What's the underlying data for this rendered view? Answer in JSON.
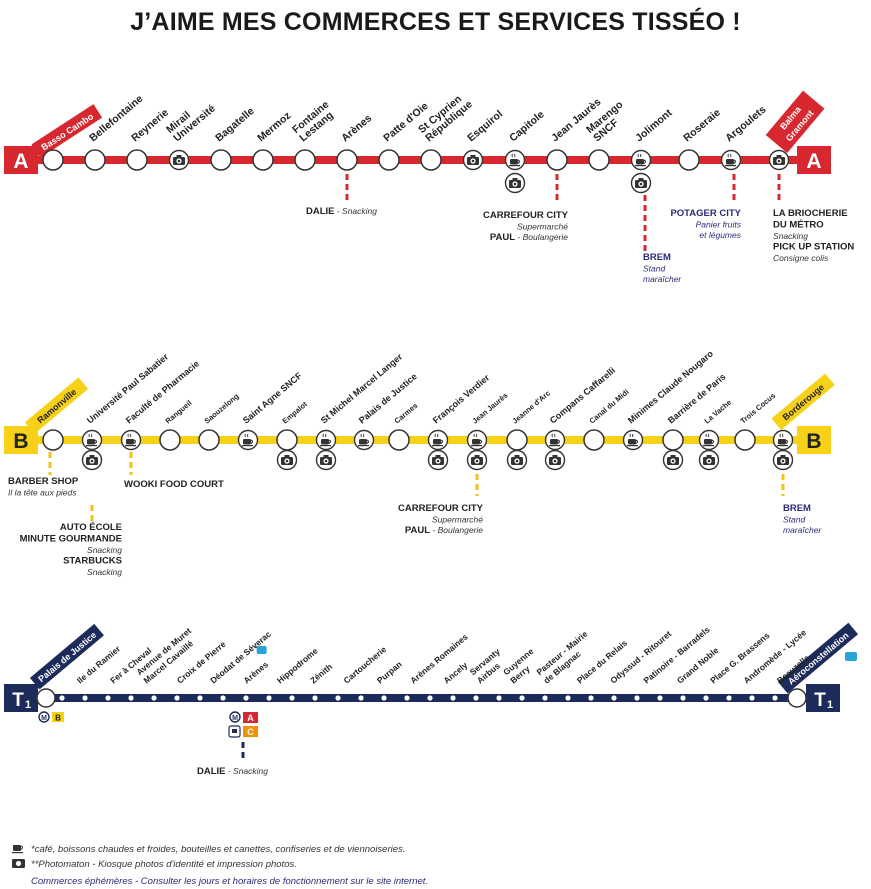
{
  "title": "J’AIME MES COMMERCES ET SERVICES TISSÉO !",
  "colors": {
    "lineA": "#d7282f",
    "lineB": "#f7d117",
    "lineT1": "#1c2b5a",
    "dash_red": "#d7282f",
    "dash_yellow": "#f2c11a",
    "dash_navy": "#1c2b5a",
    "shop_blue": "#2b2a7a",
    "metro_b_badge": "#f7d117",
    "metro_a_badge": "#d7282f",
    "metro_c_badge": "#f39200",
    "airport_badge": "#2aa3d8"
  },
  "lines": {
    "A": {
      "letter": "A",
      "terminus_start": [
        "Basso Cambo"
      ],
      "terminus_end": [
        "Balma",
        "Gramont"
      ],
      "stations": [
        {
          "name": [
            "Bellefontaine"
          ],
          "icons": []
        },
        {
          "name": [
            "Reynerie"
          ],
          "icons": []
        },
        {
          "name": [
            "Mirail",
            "Université"
          ],
          "icons": [
            "photo"
          ]
        },
        {
          "name": [
            "Bagatelle"
          ],
          "icons": []
        },
        {
          "name": [
            "Mermoz"
          ],
          "icons": []
        },
        {
          "name": [
            "Fontaine",
            "Lestang"
          ],
          "icons": []
        },
        {
          "name": [
            "Arènes"
          ],
          "icons": []
        },
        {
          "name": [
            "Patte d'Oie"
          ],
          "icons": []
        },
        {
          "name": [
            "St Cyprien",
            "République"
          ],
          "icons": []
        },
        {
          "name": [
            "Esquirol"
          ],
          "icons": [
            "photo"
          ]
        },
        {
          "name": [
            "Capitole"
          ],
          "icons": [
            "cafe",
            "photo"
          ]
        },
        {
          "name": [
            "Jean Jaurès"
          ],
          "icons": []
        },
        {
          "name": [
            "Marengo",
            "SNCF"
          ],
          "icons": []
        },
        {
          "name": [
            "Jolimont"
          ],
          "icons": [
            "cafe",
            "photo"
          ]
        },
        {
          "name": [
            "Roseraie"
          ],
          "icons": []
        },
        {
          "name": [
            "Argoulets"
          ],
          "icons": [
            "cafe"
          ]
        },
        {
          "name": [],
          "icons": [
            "photo"
          ]
        }
      ],
      "shops": [
        {
          "anchor": "Arènes",
          "lines": [
            {
              "bold": "DALIE",
              "rest": " - Snacking"
            }
          ]
        },
        {
          "anchor": "Jean Jaurès",
          "lines": [
            {
              "bold": "CARREFOUR CITY",
              "rest": ""
            },
            {
              "bold": "",
              "rest": "Supermarché"
            },
            {
              "bold": "PAUL",
              "rest": " - Boulangerie"
            }
          ]
        },
        {
          "anchor": "Jolimont",
          "lines": [
            {
              "bold": "BREM",
              "rest": ""
            },
            {
              "bold": "",
              "rest": "Stand"
            },
            {
              "bold": "",
              "rest": "maraîcher"
            }
          ]
        },
        {
          "anchor": "Argoulets",
          "lines": [
            {
              "bold": "POTAGER CITY",
              "rest": ""
            },
            {
              "bold": "",
              "rest": "Panier fruits"
            },
            {
              "bold": "",
              "rest": "et légumes"
            }
          ]
        },
        {
          "anchor": "Balma-Gramont",
          "lines": [
            {
              "bold": "LA BRIOCHERIE",
              "rest": ""
            },
            {
              "bold": "DU MÉTRO",
              "rest": ""
            },
            {
              "bold": "",
              "rest": "Snacking"
            },
            {
              "bold": "PICK UP STATION",
              "rest": ""
            },
            {
              "bold": "",
              "rest": "Consigne colis"
            }
          ]
        }
      ]
    },
    "B": {
      "letter": "B",
      "terminus_start": [
        "Ramonville"
      ],
      "terminus_end": [
        "Borderouge"
      ],
      "stations": [
        {
          "name": [
            "Université Paul Sabatier"
          ],
          "icons": [
            "cafe",
            "photo"
          ]
        },
        {
          "name": [
            "Faculté de Pharmacie"
          ],
          "icons": [
            "cafe"
          ]
        },
        {
          "name": [
            "Rangueil"
          ],
          "icons": []
        },
        {
          "name": [
            "Saouzelong"
          ],
          "icons": []
        },
        {
          "name": [
            "Saint Agne SNCF"
          ],
          "icons": [
            "cafe"
          ]
        },
        {
          "name": [
            "Empalot"
          ],
          "icons": [
            "photo"
          ]
        },
        {
          "name": [
            "St Michel Marcel Langer"
          ],
          "icons": [
            "cafe",
            "photo"
          ]
        },
        {
          "name": [
            "Palais de Justice"
          ],
          "icons": [
            "cafe"
          ]
        },
        {
          "name": [
            "Carmes"
          ],
          "icons": []
        },
        {
          "name": [
            "François Verdier"
          ],
          "icons": [
            "cafe",
            "photo"
          ]
        },
        {
          "name": [
            "Jean Jaurès"
          ],
          "icons": [
            "cafe",
            "photo"
          ]
        },
        {
          "name": [
            "Jeanne d'Arc"
          ],
          "icons": [
            "photo"
          ]
        },
        {
          "name": [
            "Compans Caffarelli"
          ],
          "icons": [
            "cafe",
            "photo"
          ]
        },
        {
          "name": [
            "Canal du Midi"
          ],
          "icons": []
        },
        {
          "name": [
            "Minimes Claude Nougaro"
          ],
          "icons": [
            "cafe"
          ]
        },
        {
          "name": [
            "Barrière de Paris"
          ],
          "icons": [
            "photo"
          ]
        },
        {
          "name": [
            "La Vache"
          ],
          "icons": [
            "cafe",
            "photo"
          ]
        },
        {
          "name": [
            "Trois Cocus"
          ],
          "icons": []
        },
        {
          "name": [],
          "icons": [
            "cafe",
            "photo"
          ]
        }
      ],
      "shops": [
        {
          "anchor": "Ramonville",
          "lines": [
            {
              "bold": "BARBER SHOP",
              "rest": ""
            },
            {
              "bold": "",
              "rest": "Il la tête aux pieds"
            }
          ]
        },
        {
          "anchor": "Ramonville-2",
          "lines": [
            {
              "bold": "AUTO ÉCOLE",
              "rest": ""
            },
            {
              "bold": "MINUTE GOURMANDE",
              "rest": ""
            },
            {
              "bold": "",
              "rest": "Snacking"
            },
            {
              "bold": "STARBUCKS",
              "rest": ""
            },
            {
              "bold": "",
              "rest": "Snacking"
            }
          ]
        },
        {
          "anchor": "Faculté de Pharmacie",
          "lines": [
            {
              "bold": "WOOKI FOOD COURT",
              "rest": ""
            }
          ]
        },
        {
          "anchor": "Jean Jaurès",
          "lines": [
            {
              "bold": "CARREFOUR CITY",
              "rest": ""
            },
            {
              "bold": "",
              "rest": "Supermarché"
            },
            {
              "bold": "PAUL",
              "rest": " - Boulangerie"
            }
          ]
        },
        {
          "anchor": "Borderouge",
          "lines": [
            {
              "bold": "BREM",
              "rest": ""
            },
            {
              "bold": "",
              "rest": "Stand"
            },
            {
              "bold": "",
              "rest": "maraîcher"
            }
          ]
        }
      ]
    },
    "T1": {
      "letter": "T1",
      "terminus_start": [
        "Palais de Justice"
      ],
      "terminus_end": [
        "Aéroconstellation"
      ],
      "stations": [
        {
          "name": [
            "Ile du Ramier"
          ]
        },
        {
          "name": [
            "Fer à Cheval"
          ]
        },
        {
          "name": [
            "Avenue de Muret",
            "Marcel Cavaillé"
          ]
        },
        {
          "name": [
            "Croix de Pierre"
          ]
        },
        {
          "name": [
            "Déodat de Séverac"
          ]
        },
        {
          "name": [
            "Arènes"
          ]
        },
        {
          "name": [
            "Hippodrome"
          ]
        },
        {
          "name": [
            "Zénith"
          ]
        },
        {
          "name": [
            "Cartoucherie"
          ]
        },
        {
          "name": [
            "Purpan"
          ]
        },
        {
          "name": [
            "Arènes Romaines"
          ]
        },
        {
          "name": [
            "Ancely"
          ]
        },
        {
          "name": [
            "Servanty",
            "Airbus"
          ]
        },
        {
          "name": [
            "Guyenne",
            "Berry"
          ]
        },
        {
          "name": [
            "Pasteur - Mairie",
            "de Blagnac"
          ]
        },
        {
          "name": [
            "Place du Relais"
          ]
        },
        {
          "name": [
            "Odyssud - Ritouret"
          ]
        },
        {
          "name": [
            "Patinoire - Barradels"
          ]
        },
        {
          "name": [
            "Grand Noble"
          ]
        },
        {
          "name": [
            "Place G. Brassens"
          ]
        },
        {
          "name": [
            "Andromède - Lycée"
          ]
        },
        {
          "name": [
            "Beauzelle"
          ]
        }
      ],
      "badges": {
        "start": [
          "M",
          "B"
        ],
        "arenes": [
          "M",
          "A",
          "C"
        ]
      },
      "shops": [
        {
          "anchor": "Arènes",
          "lines": [
            {
              "bold": "DALIE",
              "rest": " - Snacking"
            }
          ]
        }
      ]
    }
  },
  "legend": {
    "cafe": "*café, boissons chaudes et froides, bouteilles et canettes, confiseries et de viennoiseries.",
    "photo": "**Photomaton - Kiosque photos d'identité et impression photos.",
    "note": "Commerces éphémères - Consulter les jours et horaires de fonctionnement sur le site internet."
  }
}
